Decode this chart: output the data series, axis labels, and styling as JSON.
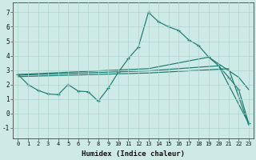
{
  "xlabel": "Humidex (Indice chaleur)",
  "xlim": [
    -0.5,
    23.5
  ],
  "ylim": [
    -1.7,
    7.7
  ],
  "xticks": [
    0,
    1,
    2,
    3,
    4,
    5,
    6,
    7,
    8,
    9,
    10,
    11,
    12,
    13,
    14,
    15,
    16,
    17,
    18,
    19,
    20,
    21,
    22,
    23
  ],
  "yticks": [
    -1,
    0,
    1,
    2,
    3,
    4,
    5,
    6,
    7
  ],
  "background_color": "#ceeae6",
  "grid_color": "#aed4cf",
  "line_color": "#1a7a6e",
  "line1_x": [
    0,
    1,
    2,
    3,
    4,
    5,
    6,
    7,
    8,
    9,
    10,
    11,
    12,
    13,
    14,
    15,
    16,
    17,
    18,
    19,
    20,
    21,
    22,
    23
  ],
  "line1_y": [
    2.7,
    2.0,
    1.6,
    1.35,
    1.3,
    2.0,
    1.55,
    1.5,
    0.85,
    1.75,
    2.85,
    3.8,
    4.6,
    7.0,
    6.35,
    6.0,
    5.75,
    5.1,
    4.7,
    3.9,
    3.3,
    2.5,
    1.65,
    -0.7
  ],
  "line2_x": [
    0,
    13,
    19,
    22,
    23
  ],
  "line2_y": [
    2.7,
    3.1,
    3.9,
    2.5,
    1.65
  ],
  "line3_x": [
    0,
    13,
    20,
    23
  ],
  "line3_y": [
    2.65,
    2.95,
    3.3,
    -0.7
  ],
  "line4_x": [
    0,
    13,
    21,
    23
  ],
  "line4_y": [
    2.55,
    2.8,
    3.1,
    -0.8
  ]
}
